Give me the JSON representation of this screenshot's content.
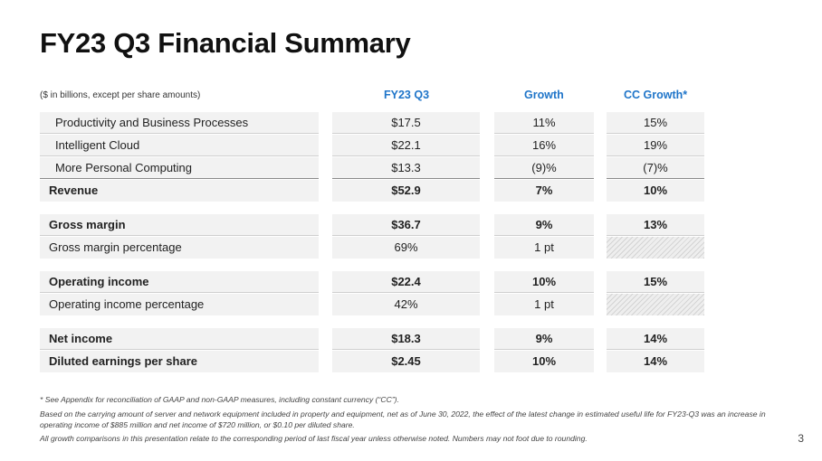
{
  "title": "FY23 Q3 Financial Summary",
  "table": {
    "note": "($ in billions, except per share amounts)",
    "columns": [
      "FY23 Q3",
      "Growth",
      "CC Growth*"
    ],
    "rows": [
      {
        "label": "Productivity and Business Processes",
        "q3": "$17.5",
        "growth": "11%",
        "cc": "15%"
      },
      {
        "label": "Intelligent Cloud",
        "q3": "$22.1",
        "growth": "16%",
        "cc": "19%"
      },
      {
        "label": "More Personal Computing",
        "q3": "$13.3",
        "growth": "(9)%",
        "cc": "(7)%"
      },
      {
        "label": "Revenue",
        "q3": "$52.9",
        "growth": "7%",
        "cc": "10%"
      },
      {
        "label": "Gross margin",
        "q3": "$36.7",
        "growth": "9%",
        "cc": "13%"
      },
      {
        "label": "Gross margin percentage",
        "q3": "69%",
        "growth": "1 pt",
        "cc": ""
      },
      {
        "label": "Operating income",
        "q3": "$22.4",
        "growth": "10%",
        "cc": "15%"
      },
      {
        "label": "Operating income percentage",
        "q3": "42%",
        "growth": "1 pt",
        "cc": ""
      },
      {
        "label": "Net income",
        "q3": "$18.3",
        "growth": "9%",
        "cc": "14%"
      },
      {
        "label": "Diluted earnings per share",
        "q3": "$2.45",
        "growth": "10%",
        "cc": "14%"
      }
    ]
  },
  "footnotes": [
    "* See Appendix for reconciliation of GAAP and non-GAAP measures, including constant currency (“CC”).",
    "Based on the carrying amount of server and network equipment included in property and equipment, net as of June 30, 2022, the effect of the latest change in estimated useful life for FY23-Q3 was an increase in operating income of $885 million and net income of $720 million, or $0.10 per diluted share.",
    "All growth comparisons in this presentation relate to the corresponding period of last fiscal year unless otherwise noted. Numbers may not foot due to rounding."
  ],
  "page_number": "3",
  "colors": {
    "accent": "#1f75c9",
    "cell_bg": "#f2f2f2"
  }
}
